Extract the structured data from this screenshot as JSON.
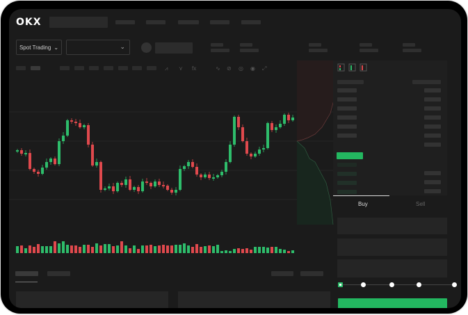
{
  "header": {
    "brand": "OKX",
    "logo_icon": "okx-logo"
  },
  "toolbar": {
    "spot_trading_label": "Spot Trading",
    "spot_chevron": "chevron-down-icon",
    "pair_chevron": "chevron-down-icon",
    "tools": [
      "line-icon",
      "line-icon",
      "fx-icon",
      "wave-icon",
      "ruler-icon",
      "camera-icon",
      "settings-icon",
      "fullscreen-icon"
    ]
  },
  "orderbook": {
    "view_icons": [
      "orderbook-both-icon",
      "orderbook-bids-icon",
      "orderbook-asks-icon"
    ]
  },
  "order_form": {
    "tabs": [
      {
        "label": "Buy",
        "active": true
      },
      {
        "label": "Sell",
        "active": false
      }
    ],
    "slider_steps": 5,
    "slider_value": 0,
    "submit_color": "#23b760"
  },
  "colors": {
    "up": "#2ebd6b",
    "down": "#e0494d",
    "accent": "#23b760"
  },
  "chart_data": {
    "type": "candlestick",
    "ylim": [
      20,
      190
    ],
    "grid": true,
    "open_start": 95,
    "closes": [
      97,
      92,
      93,
      70,
      66,
      63,
      72,
      80,
      85,
      77,
      110,
      118,
      140,
      138,
      136,
      130,
      133,
      105,
      75,
      80,
      40,
      42,
      45,
      38,
      50,
      47,
      55,
      40,
      44,
      38,
      52,
      50,
      45,
      52,
      47,
      46,
      40,
      36,
      40,
      70,
      74,
      80,
      73,
      62,
      58,
      62,
      57,
      58,
      61,
      66,
      80,
      105,
      145,
      130,
      110,
      92,
      88,
      92,
      98,
      100,
      136,
      126,
      130,
      135,
      148,
      140,
      144
    ],
    "volumes": [
      10,
      11,
      7,
      11,
      9,
      13,
      10,
      10,
      10,
      17,
      14,
      17,
      12,
      11,
      11,
      9,
      12,
      12,
      9,
      14,
      11,
      13,
      13,
      10,
      11,
      17,
      11,
      7,
      11,
      6,
      11,
      11,
      12,
      10,
      11,
      12,
      11,
      11,
      12,
      12,
      14,
      11,
      9,
      13,
      9,
      10,
      11,
      10,
      12,
      3,
      4,
      3,
      6,
      7,
      6,
      7,
      5,
      9,
      9,
      9,
      8,
      9,
      9,
      6,
      5,
      3,
      4
    ]
  }
}
